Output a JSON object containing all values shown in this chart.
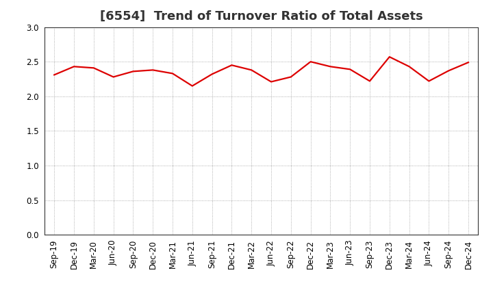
{
  "title": "[6554]  Trend of Turnover Ratio of Total Assets",
  "x_labels": [
    "Sep-19",
    "Dec-19",
    "Mar-20",
    "Jun-20",
    "Sep-20",
    "Dec-20",
    "Mar-21",
    "Jun-21",
    "Sep-21",
    "Dec-21",
    "Mar-22",
    "Jun-22",
    "Sep-22",
    "Dec-22",
    "Mar-23",
    "Jun-23",
    "Sep-23",
    "Dec-23",
    "Mar-24",
    "Jun-24",
    "Sep-24",
    "Dec-24"
  ],
  "y_values": [
    2.31,
    2.43,
    2.41,
    2.28,
    2.36,
    2.38,
    2.33,
    2.15,
    2.32,
    2.45,
    2.38,
    2.21,
    2.28,
    2.5,
    2.43,
    2.39,
    2.22,
    2.57,
    2.43,
    2.22,
    2.37,
    2.49
  ],
  "line_color": "#dd0000",
  "line_width": 1.6,
  "ylim": [
    0.0,
    3.0
  ],
  "yticks": [
    0.0,
    0.5,
    1.0,
    1.5,
    2.0,
    2.5,
    3.0
  ],
  "background_color": "#ffffff",
  "grid_color": "#999999",
  "title_fontsize": 13,
  "tick_fontsize": 8.5,
  "title_color": "#333333"
}
